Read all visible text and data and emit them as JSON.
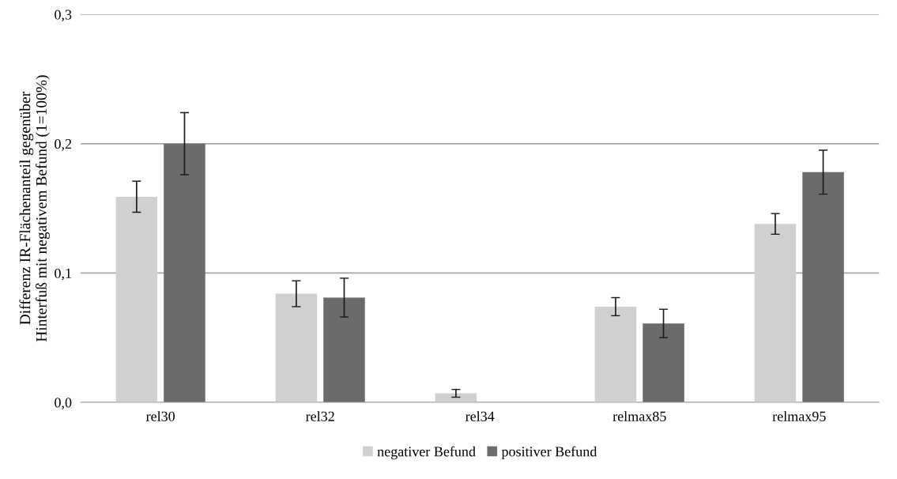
{
  "chart_data": {
    "type": "bar",
    "ylabel": "Differenz IR-Flächenanteil gegenüber\nHinterfuß mit negativem Befund (1=100%)",
    "categories": [
      "rel30",
      "rel32",
      "rel34",
      "relmax85",
      "relmax95"
    ],
    "series": [
      {
        "name": "negativer Befund",
        "color": "#d0d0d2",
        "values": [
          0.159,
          0.084,
          0.007,
          0.074,
          0.138
        ],
        "errors": [
          0.012,
          0.01,
          0.003,
          0.007,
          0.008
        ]
      },
      {
        "name": "positiver Befund",
        "color": "#6b6b6e",
        "values": [
          0.2,
          0.081,
          null,
          0.061,
          0.178
        ],
        "errors": [
          0.024,
          0.015,
          null,
          0.011,
          0.017
        ]
      }
    ],
    "ylim": [
      0,
      0.3
    ],
    "yticks": [
      {
        "value": 0,
        "label": "0,0"
      },
      {
        "value": 0.1,
        "label": "0,1"
      },
      {
        "value": 0.2,
        "label": "0,2"
      },
      {
        "value": 0.3,
        "label": "0,3"
      }
    ],
    "grid": "y",
    "legend": "bottom"
  }
}
